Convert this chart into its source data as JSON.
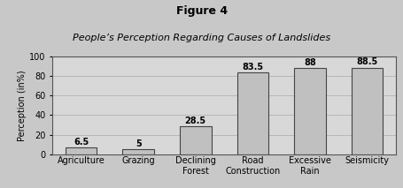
{
  "title": "Figure 4",
  "subtitle": "People’s Perception Regarding Causes of Landslides",
  "categories": [
    "Agriculture",
    "Grazing",
    "Declining\nForest",
    "Road\nConstruction",
    "Excessive\nRain",
    "Seismicity"
  ],
  "values": [
    6.5,
    5,
    28.5,
    83.5,
    88,
    88.5
  ],
  "bar_color": "#c0c0c0",
  "bar_edge_color": "#444444",
  "ylabel": "Perception (in%)",
  "ylim": [
    0,
    100
  ],
  "yticks": [
    0,
    20,
    40,
    60,
    80,
    100
  ],
  "fig_bg_color": "#c8c8c8",
  "plot_bg_color": "#d8d8d8",
  "title_fontsize": 9,
  "subtitle_fontsize": 8,
  "ylabel_fontsize": 7,
  "tick_fontsize": 7,
  "value_fontsize": 7
}
